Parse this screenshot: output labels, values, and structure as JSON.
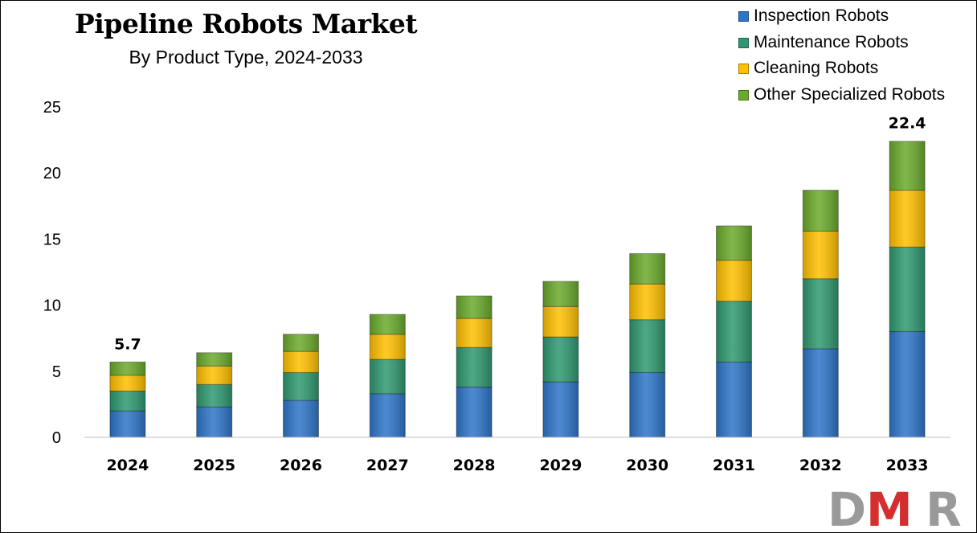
{
  "header": {
    "title": "Pipeline Robots Market",
    "subtitle": "By Product Type, 2024-2033"
  },
  "legend": [
    {
      "label": "Inspection Robots",
      "color": "#2e75c8"
    },
    {
      "label": "Maintenance Robots",
      "color": "#2f9870"
    },
    {
      "label": "Cleaning Robots",
      "color": "#ffc000"
    },
    {
      "label": "Other Specialized Robots",
      "color": "#6aaa2c"
    }
  ],
  "logo": {
    "text": "DMR"
  },
  "chart_data": {
    "type": "bar",
    "stacked": true,
    "title": "Pipeline Robots Market",
    "subtitle": "By Product Type, 2024-2033",
    "categories": [
      "2024",
      "2025",
      "2026",
      "2027",
      "2028",
      "2029",
      "2030",
      "2031",
      "2032",
      "2033"
    ],
    "series": [
      {
        "name": "Inspection Robots",
        "color": "#2e75c8",
        "values": [
          2.0,
          2.3,
          2.8,
          3.3,
          3.8,
          4.2,
          4.9,
          5.7,
          6.7,
          8.0
        ]
      },
      {
        "name": "Maintenance Robots",
        "color": "#2f9870",
        "values": [
          1.5,
          1.7,
          2.1,
          2.6,
          3.0,
          3.4,
          4.0,
          4.6,
          5.3,
          6.4
        ]
      },
      {
        "name": "Cleaning Robots",
        "color": "#ffc000",
        "values": [
          1.2,
          1.4,
          1.6,
          1.9,
          2.2,
          2.3,
          2.7,
          3.1,
          3.6,
          4.3
        ]
      },
      {
        "name": "Other Specialized Robots",
        "color": "#6aaa2c",
        "values": [
          1.0,
          1.0,
          1.3,
          1.5,
          1.7,
          1.9,
          2.3,
          2.6,
          3.1,
          3.7
        ]
      }
    ],
    "data_labels": [
      {
        "category": "2024",
        "text": "5.7"
      },
      {
        "category": "2033",
        "text": "22.4"
      }
    ],
    "y_ticks": [
      "0",
      "5",
      "10",
      "15",
      "20",
      "25"
    ],
    "ylim": [
      0,
      25
    ],
    "grid": false,
    "legend_position": "top-right"
  }
}
